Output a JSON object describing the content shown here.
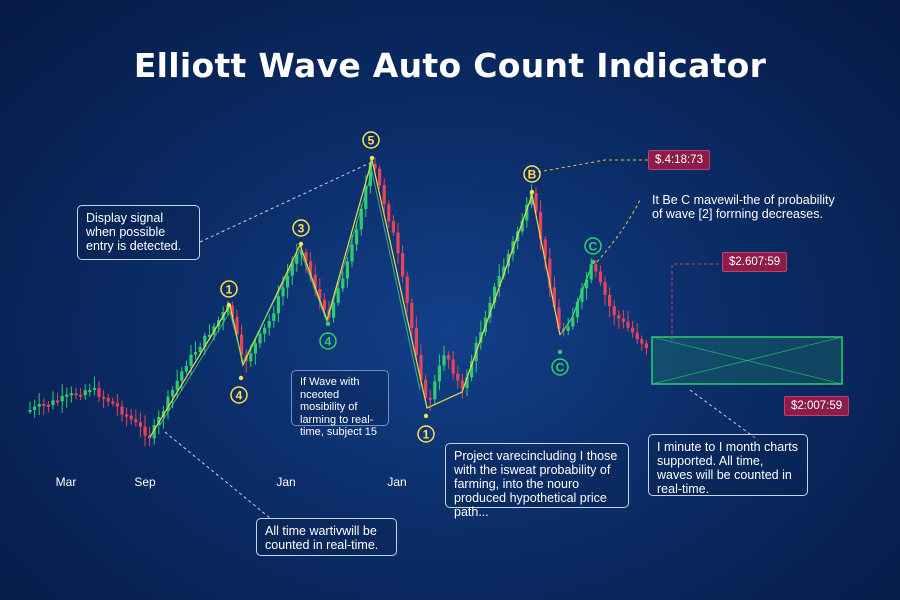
{
  "title": "Elliott Wave Auto Count Indicator",
  "chart_data": {
    "type": "candlestick",
    "x_tick_labels": [
      "Mar",
      "Sep",
      "Jan",
      "Jan"
    ],
    "wave_labels": [
      {
        "label": "1",
        "color": "#ffe14d"
      },
      {
        "label": "4",
        "color": "#ffe14d"
      },
      {
        "label": "3",
        "color": "#ffe14d"
      },
      {
        "label": "4",
        "color": "#33d06a"
      },
      {
        "label": "5",
        "color": "#ffe14d"
      },
      {
        "label": "1",
        "color": "#ffe14d"
      },
      {
        "label": "B",
        "color": "#ffe14d"
      },
      {
        "label": "C",
        "color": "#33d06a"
      },
      {
        "label": "C",
        "color": "#33d06a"
      }
    ],
    "price_tags": [
      "$.4:18:73",
      "$2.607:59",
      "$2:007:59"
    ],
    "colors": {
      "up": "#2ecc71",
      "down": "#e8435a",
      "wave_line": "#f1d84a",
      "green_line": "#3ddc76",
      "target_box": "#2ecc71"
    }
  },
  "annotations": {
    "display_signal": "Display signal when possible entry is detected.",
    "if_wave": "If Wave with nceoted mosibility of larming to real-time, subject 15",
    "all_time": "All time wartivwill be counted in real-time.",
    "project": "Project varecincluding I those with the isweat probability of farming, into the nouro produced hypothetical price path...",
    "b_c_note": "It Be C mavewil-the of probability of wave [2] forrning decreases.",
    "timeframes": "I minute to I month charts supported. All time, waves will be counted in real-time."
  }
}
